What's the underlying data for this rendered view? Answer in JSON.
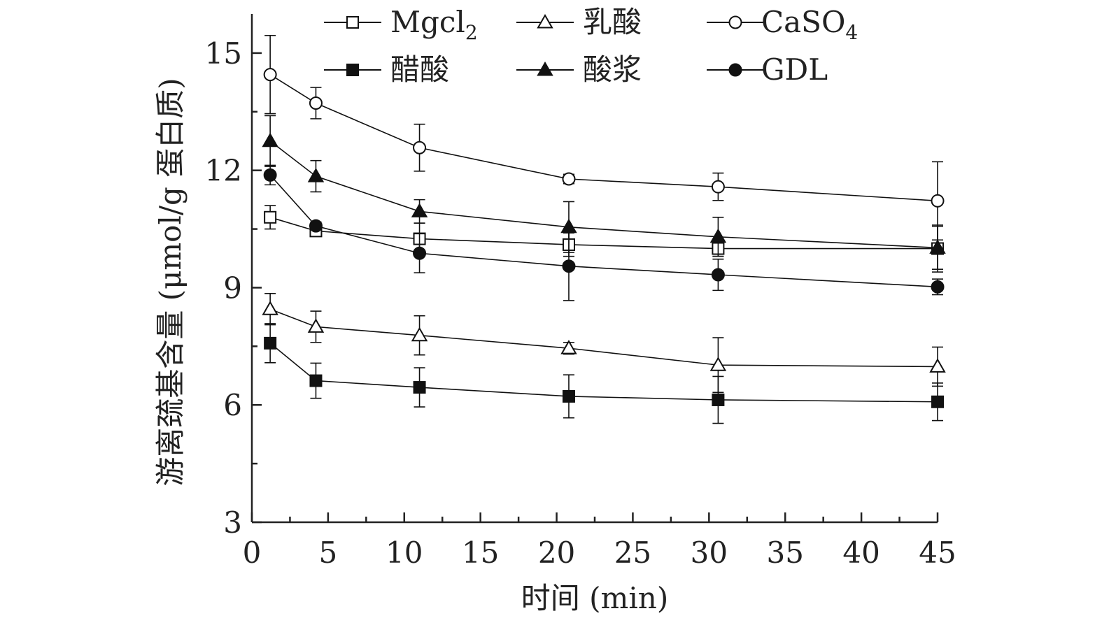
{
  "chart_data": {
    "type": "line",
    "xlabel": "时间 (min)",
    "ylabel": "游离巯基含量 (μmol/g 蛋白质)",
    "xlim": [
      0,
      45
    ],
    "ylim": [
      3,
      16
    ],
    "xticks": [
      0,
      5,
      10,
      15,
      20,
      25,
      30,
      35,
      40,
      45
    ],
    "yticks": [
      3,
      6,
      9,
      12,
      15
    ],
    "x": [
      1.2,
      4.2,
      11,
      20.8,
      30.6,
      45
    ],
    "grid": false,
    "legend_position": "top",
    "series": [
      {
        "name": "Mgcl",
        "name_sub": "2",
        "marker": "square-open",
        "values": [
          10.8,
          10.45,
          10.25,
          10.1,
          10.0,
          10.0
        ],
        "errors": [
          0.3,
          0.1,
          0.4,
          0.3,
          0.2,
          0.6
        ]
      },
      {
        "name": "乳酸",
        "marker": "triangle-open",
        "values": [
          8.45,
          8.0,
          7.78,
          7.45,
          7.02,
          6.98
        ],
        "errors": [
          0.4,
          0.4,
          0.5,
          0.15,
          0.7,
          0.5
        ]
      },
      {
        "name": "CaSO",
        "name_sub": "4",
        "marker": "circle-open",
        "values": [
          14.45,
          13.72,
          12.58,
          11.78,
          11.58,
          11.22
        ],
        "errors": [
          1.0,
          0.4,
          0.6,
          0.12,
          0.35,
          1.0
        ]
      },
      {
        "name": "醋酸",
        "marker": "square-filled",
        "values": [
          7.58,
          6.62,
          6.45,
          6.22,
          6.13,
          6.08
        ],
        "errors": [
          0.5,
          0.45,
          0.5,
          0.55,
          0.6,
          0.48
        ]
      },
      {
        "name": "酸浆",
        "marker": "triangle-filled",
        "values": [
          12.75,
          11.85,
          10.95,
          10.55,
          10.3,
          10.02
        ],
        "errors": [
          0.65,
          0.4,
          0.3,
          0.65,
          0.5,
          0.55
        ]
      },
      {
        "name": "GDL",
        "marker": "circle-filled",
        "values": [
          11.88,
          10.58,
          9.88,
          9.55,
          9.33,
          9.02
        ],
        "errors": [
          0.25,
          0.1,
          0.5,
          0.88,
          0.4,
          0.2
        ]
      }
    ]
  }
}
